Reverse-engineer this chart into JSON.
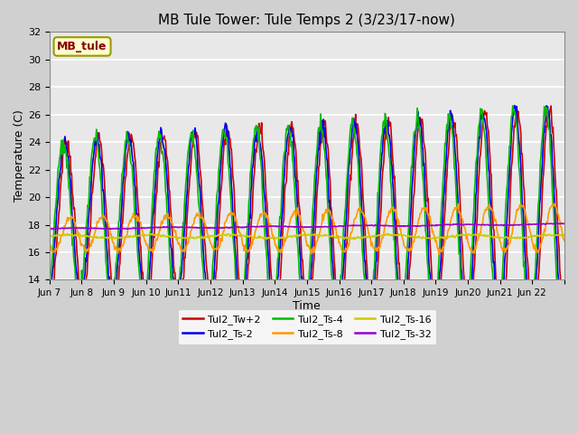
{
  "title": "MB Tule Tower: Tule Temps 2 (3/23/17-now)",
  "xlabel": "Time",
  "ylabel": "Temperature (C)",
  "ylim": [
    14,
    32
  ],
  "yticks": [
    14,
    16,
    18,
    20,
    22,
    24,
    26,
    28,
    30,
    32
  ],
  "x_labels": [
    "Jun 7",
    "Jun 8",
    "Jun 9",
    "Jun 10",
    "Jun11",
    "Jun12",
    "Jun13",
    "Jun14",
    "Jun15",
    "Jun16",
    "Jun17",
    "Jun18",
    "Jun19",
    "Jun20",
    "Jun21",
    "Jun 22"
  ],
  "series_names": [
    "Tul2_Tw+2",
    "Tul2_Ts-2",
    "Tul2_Ts-4",
    "Tul2_Ts-8",
    "Tul2_Ts-16",
    "Tul2_Ts-32"
  ],
  "series_colors": [
    "#cc0000",
    "#0000ee",
    "#00bb00",
    "#ff9900",
    "#cccc00",
    "#9900cc"
  ],
  "legend_label": "MB_tule",
  "legend_bg": "#ffffcc",
  "legend_border": "#999900",
  "fig_bg": "#d0d0d0",
  "plot_bg": "#e8e8e8",
  "n_days": 16,
  "pts_per_day": 48
}
